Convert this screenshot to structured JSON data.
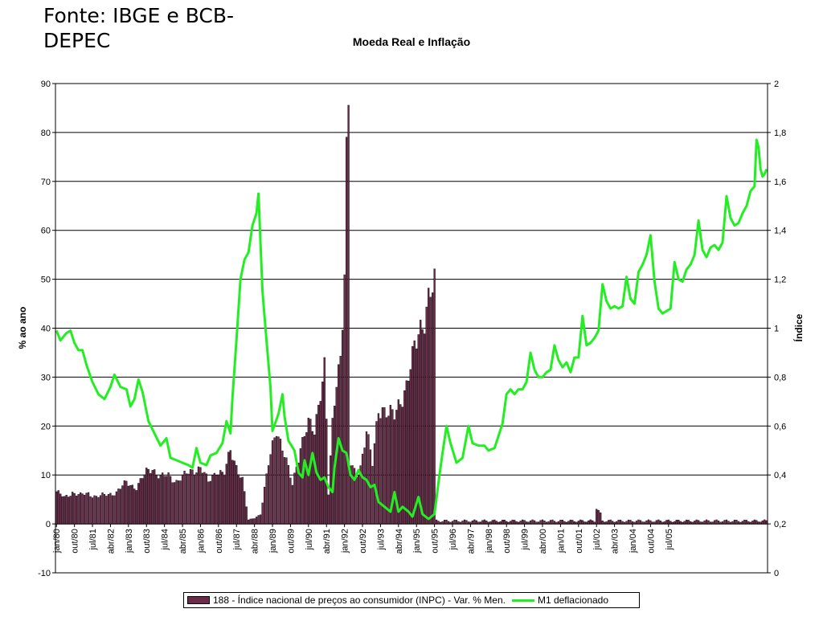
{
  "source_note": "Fonte: IBGE e BCB-DEPEC",
  "chart_data": {
    "type": "bar",
    "title": "Moeda Real e Inflação",
    "ylabel": "% ao ano",
    "y2label": "Índice",
    "ylim": [
      -10,
      90
    ],
    "y2lim": [
      0,
      2
    ],
    "yticks": [
      "90",
      "80",
      "70",
      "60",
      "50",
      "40",
      "30",
      "20",
      "10",
      "0",
      "-10"
    ],
    "y2ticks": [
      "2",
      "1,8",
      "1,6",
      "1,4",
      "1,2",
      "1",
      "0,8",
      "0,6",
      "0,4",
      "0,2",
      "0"
    ],
    "x_tick_labels": [
      "jan/80",
      "out/80",
      "jul/81",
      "abr/82",
      "jan/83",
      "out/83",
      "jul/84",
      "abr/85",
      "jan/86",
      "out/86",
      "jul/87",
      "abr/88",
      "jan/89",
      "out/89",
      "jul/90",
      "abr/91",
      "jan/92",
      "out/92",
      "jul/93",
      "abr/94",
      "jan/95",
      "out/95",
      "jul/96",
      "abr/97",
      "jan/98",
      "out/98",
      "jul/99",
      "abr/00",
      "jan/01",
      "out/01",
      "jul/02",
      "abr/03",
      "jan/04",
      "out/04",
      "jul/05"
    ],
    "months_per_point": 1,
    "grid": true,
    "legend_position": "bottom",
    "colors": {
      "bars": "#6e2a4a",
      "line": "#22ee22"
    },
    "series": [
      {
        "name": "188 - Índice nacional de preços ao consumidor (INPC) - Var. % Men.",
        "kind": "bar",
        "axis": "left",
        "anchors": [
          [
            0,
            6.6
          ],
          [
            4,
            5.3
          ],
          [
            8,
            6.5
          ],
          [
            12,
            5.8
          ],
          [
            16,
            6.2
          ],
          [
            20,
            5.6
          ],
          [
            24,
            5.8
          ],
          [
            30,
            6.5
          ],
          [
            35,
            8.4
          ],
          [
            40,
            7.5
          ],
          [
            45,
            10.5
          ],
          [
            48,
            11.5
          ],
          [
            52,
            9.5
          ],
          [
            56,
            9.8
          ],
          [
            60,
            8.8
          ],
          [
            64,
            9.8
          ],
          [
            68,
            11
          ],
          [
            72,
            11.5
          ],
          [
            76,
            8.5
          ],
          [
            80,
            11
          ],
          [
            84,
            10
          ],
          [
            87,
            15
          ],
          [
            90,
            12
          ],
          [
            93,
            9
          ],
          [
            96,
            0.8
          ],
          [
            99,
            1.2
          ],
          [
            102,
            2
          ],
          [
            106,
            12
          ],
          [
            110,
            20
          ],
          [
            114,
            14
          ],
          [
            118,
            8
          ],
          [
            122,
            16
          ],
          [
            126,
            20
          ],
          [
            129,
            19
          ],
          [
            132,
            28
          ],
          [
            134,
            32
          ],
          [
            135,
            21
          ],
          [
            136,
            6
          ],
          [
            138,
            20
          ],
          [
            140,
            30
          ],
          [
            142,
            35
          ],
          [
            144,
            52
          ],
          [
            145,
            73
          ],
          [
            146,
            82
          ],
          [
            147,
            12
          ],
          [
            150,
            10
          ],
          [
            152,
            12
          ],
          [
            155,
            19
          ],
          [
            158,
            12
          ],
          [
            161,
            24
          ],
          [
            163,
            24
          ],
          [
            166,
            22
          ],
          [
            169,
            22
          ],
          [
            172,
            26
          ],
          [
            175,
            28
          ],
          [
            178,
            33
          ],
          [
            181,
            40
          ],
          [
            183,
            42
          ],
          [
            186,
            45
          ],
          [
            189,
            48
          ]
        ],
        "anchor_note": "month index from jan/80",
        "then_value": 0.6,
        "bumps": [
          [
            270,
            3.0
          ],
          [
            271,
            2.8
          ],
          [
            272,
            2.3
          ]
        ]
      },
      {
        "name": "M1 deflacionado",
        "kind": "line",
        "axis": "right",
        "anchors": [
          [
            0,
            0.99
          ],
          [
            2,
            0.95
          ],
          [
            5,
            0.98
          ],
          [
            7,
            0.99
          ],
          [
            9,
            0.94
          ],
          [
            11,
            0.91
          ],
          [
            13,
            0.91
          ],
          [
            15,
            0.85
          ],
          [
            18,
            0.78
          ],
          [
            21,
            0.73
          ],
          [
            24,
            0.71
          ],
          [
            27,
            0.76
          ],
          [
            29,
            0.81
          ],
          [
            32,
            0.76
          ],
          [
            35,
            0.75
          ],
          [
            37,
            0.68
          ],
          [
            39,
            0.71
          ],
          [
            41,
            0.79
          ],
          [
            43,
            0.74
          ],
          [
            46,
            0.62
          ],
          [
            49,
            0.57
          ],
          [
            52,
            0.52
          ],
          [
            55,
            0.55
          ],
          [
            57,
            0.47
          ],
          [
            60,
            0.46
          ],
          [
            63,
            0.45
          ],
          [
            66,
            0.44
          ],
          [
            68,
            0.43
          ],
          [
            70,
            0.51
          ],
          [
            72,
            0.45
          ],
          [
            75,
            0.44
          ],
          [
            77,
            0.48
          ],
          [
            80,
            0.49
          ],
          [
            83,
            0.53
          ],
          [
            85,
            0.62
          ],
          [
            87,
            0.57
          ],
          [
            88,
            0.72
          ],
          [
            90,
            0.95
          ],
          [
            92,
            1.2
          ],
          [
            94,
            1.28
          ],
          [
            96,
            1.31
          ],
          [
            98,
            1.42
          ],
          [
            100,
            1.47
          ],
          [
            101,
            1.55
          ],
          [
            103,
            1.15
          ],
          [
            105,
            0.95
          ],
          [
            107,
            0.76
          ],
          [
            108,
            0.58
          ],
          [
            111,
            0.65
          ],
          [
            113,
            0.73
          ],
          [
            114,
            0.64
          ],
          [
            116,
            0.54
          ],
          [
            119,
            0.5
          ],
          [
            121,
            0.41
          ],
          [
            123,
            0.39
          ],
          [
            124,
            0.46
          ],
          [
            126,
            0.4
          ],
          [
            128,
            0.49
          ],
          [
            130,
            0.41
          ],
          [
            132,
            0.38
          ],
          [
            134,
            0.39
          ],
          [
            136,
            0.35
          ],
          [
            138,
            0.33
          ],
          [
            139,
            0.43
          ],
          [
            141,
            0.55
          ],
          [
            143,
            0.5
          ],
          [
            145,
            0.49
          ],
          [
            147,
            0.4
          ],
          [
            149,
            0.38
          ],
          [
            151,
            0.42
          ],
          [
            153,
            0.39
          ],
          [
            155,
            0.38
          ],
          [
            157,
            0.35
          ],
          [
            159,
            0.36
          ],
          [
            161,
            0.29
          ],
          [
            164,
            0.27
          ],
          [
            167,
            0.25
          ],
          [
            169,
            0.33
          ],
          [
            171,
            0.25
          ],
          [
            173,
            0.27
          ],
          [
            176,
            0.25
          ],
          [
            178,
            0.23
          ],
          [
            181,
            0.31
          ],
          [
            183,
            0.24
          ],
          [
            186,
            0.22
          ],
          [
            189,
            0.24
          ],
          [
            191,
            0.37
          ],
          [
            193,
            0.49
          ],
          [
            195,
            0.6
          ],
          [
            197,
            0.53
          ],
          [
            200,
            0.45
          ],
          [
            203,
            0.47
          ],
          [
            206,
            0.6
          ],
          [
            208,
            0.53
          ],
          [
            211,
            0.52
          ],
          [
            214,
            0.52
          ],
          [
            216,
            0.5
          ],
          [
            219,
            0.51
          ],
          [
            221,
            0.56
          ],
          [
            223,
            0.61
          ],
          [
            225,
            0.73
          ],
          [
            227,
            0.75
          ],
          [
            229,
            0.73
          ],
          [
            231,
            0.75
          ],
          [
            233,
            0.75
          ],
          [
            235,
            0.78
          ],
          [
            237,
            0.9
          ],
          [
            239,
            0.83
          ],
          [
            241,
            0.8
          ],
          [
            243,
            0.8
          ],
          [
            245,
            0.82
          ],
          [
            247,
            0.83
          ],
          [
            249,
            0.93
          ],
          [
            251,
            0.87
          ],
          [
            253,
            0.84
          ],
          [
            255,
            0.86
          ],
          [
            257,
            0.82
          ],
          [
            259,
            0.88
          ],
          [
            261,
            0.88
          ],
          [
            263,
            1.05
          ],
          [
            265,
            0.93
          ],
          [
            267,
            0.94
          ],
          [
            269,
            0.96
          ],
          [
            271,
            0.99
          ],
          [
            273,
            1.18
          ],
          [
            275,
            1.11
          ],
          [
            277,
            1.08
          ],
          [
            279,
            1.09
          ],
          [
            281,
            1.08
          ],
          [
            283,
            1.09
          ],
          [
            285,
            1.21
          ],
          [
            287,
            1.12
          ],
          [
            289,
            1.1
          ],
          [
            291,
            1.23
          ],
          [
            293,
            1.26
          ],
          [
            295,
            1.3
          ],
          [
            297,
            1.38
          ],
          [
            299,
            1.19
          ],
          [
            301,
            1.08
          ],
          [
            303,
            1.06
          ],
          [
            305,
            1.07
          ],
          [
            307,
            1.08
          ],
          [
            309,
            1.27
          ],
          [
            311,
            1.2
          ],
          [
            313,
            1.19
          ],
          [
            315,
            1.24
          ],
          [
            317,
            1.26
          ],
          [
            319,
            1.3
          ],
          [
            321,
            1.44
          ],
          [
            323,
            1.32
          ],
          [
            325,
            1.29
          ],
          [
            327,
            1.33
          ],
          [
            329,
            1.34
          ],
          [
            331,
            1.32
          ],
          [
            333,
            1.35
          ],
          [
            335,
            1.54
          ],
          [
            337,
            1.45
          ],
          [
            339,
            1.42
          ],
          [
            341,
            1.43
          ],
          [
            343,
            1.47
          ],
          [
            345,
            1.5
          ],
          [
            347,
            1.56
          ],
          [
            349,
            1.58
          ],
          [
            350,
            1.77
          ],
          [
            351,
            1.74
          ],
          [
            352,
            1.65
          ],
          [
            353,
            1.62
          ],
          [
            354,
            1.63
          ],
          [
            355,
            1.65
          ]
        ]
      }
    ]
  },
  "legend": {
    "bars_label": "188 - Índice nacional de preços ao consumidor (INPC) - Var. % Men.",
    "line_label": "M1 deflacionado"
  }
}
